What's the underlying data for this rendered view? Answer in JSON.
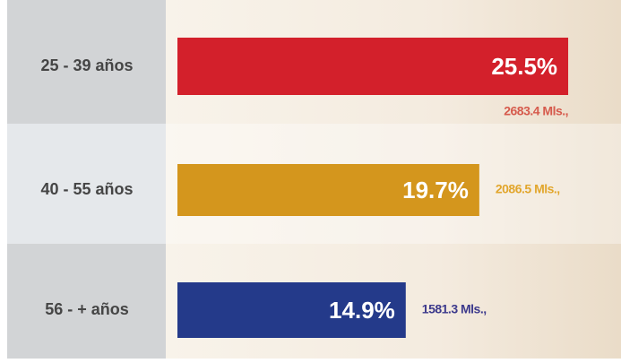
{
  "chart_data": {
    "type": "hbar",
    "categories": [
      "25 - 39 años",
      "40 - 55 años",
      "56 - + años"
    ],
    "values": [
      25.5,
      19.7,
      14.9
    ],
    "value_labels": [
      "25.5%",
      "19.7%",
      "14.9%"
    ],
    "colors": [
      "#d3202b",
      "#d4961d",
      "#243a8a"
    ],
    "amounts": [
      2683.4,
      2086.5,
      1581.3
    ],
    "amount_labels": [
      "2683.4 Mls.,",
      "2086.5 Mls.,",
      "1581.3 Mls.,"
    ],
    "amount_colors": [
      "#d65a4c",
      "#e2a62c",
      "#3d3a8c"
    ]
  }
}
